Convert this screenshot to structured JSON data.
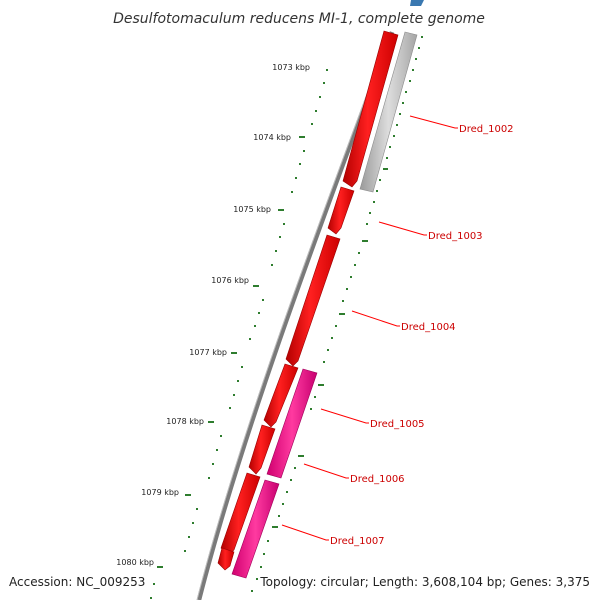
{
  "title": "Desulfotomaculum reducens MI-1, complete genome",
  "accession": "Accession: NC_009253",
  "summary": "Topology: circular; Length: 3,608,104 bp; Genes: 3,375",
  "ticks": [
    "1073 kbp",
    "1074 kbp",
    "1075 kbp",
    "1076 kbp",
    "1077 kbp",
    "1078 kbp",
    "1079 kbp",
    "1080 kbp"
  ],
  "genes": [
    {
      "label": "Dred_1002",
      "color": "#ff0000"
    },
    {
      "label": "Dred_1003",
      "color": "#ff0000"
    },
    {
      "label": "Dred_1004",
      "color": "#ff0000"
    },
    {
      "label": "Dred_1005",
      "color": "#ff1493"
    },
    {
      "label": "Dred_1006",
      "color": "#ff1493"
    },
    {
      "label": "Dred_1007",
      "color": "#ff1493"
    }
  ],
  "colors": {
    "backbone": "#7a7a7a",
    "gene_forward": "#ff0000",
    "gene_reverse": "#ff1493",
    "gene_other": "#c0c0c0",
    "tick_marks": "#2e7d2e",
    "label_line": "#ff0000"
  }
}
